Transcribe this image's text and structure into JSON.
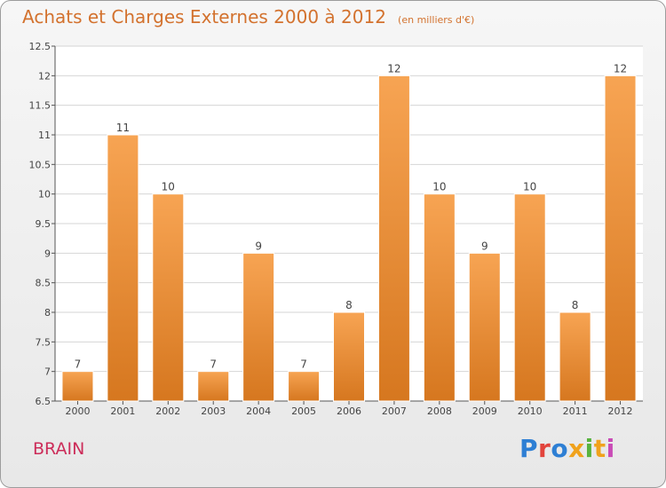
{
  "title": "Achats et Charges Externes 2000 à 2012",
  "unit_note": "(en milliers d'€)",
  "city_label": "BRAIN",
  "logo": {
    "letters": [
      "P",
      "r",
      "o",
      "x",
      "i",
      "t",
      "i"
    ],
    "colors": [
      "#2e7fd4",
      "#e2443c",
      "#2e7fd4",
      "#f0a21c",
      "#58b33e",
      "#f0a21c",
      "#c94bb6"
    ]
  },
  "colors": {
    "bar_light": "#f7a453",
    "bar_dark": "#d6771f",
    "title": "#d3722e",
    "city": "#cc2c59",
    "grid": "#d6d6d6",
    "axis": "#555555",
    "plot_bg": "#ffffff"
  },
  "chart_data": {
    "type": "bar",
    "title": "Achats et Charges Externes 2000 à 2012",
    "categories": [
      "2000",
      "2001",
      "2002",
      "2003",
      "2004",
      "2005",
      "2006",
      "2007",
      "2008",
      "2009",
      "2010",
      "2011",
      "2012"
    ],
    "values": [
      7,
      11,
      10,
      7,
      9,
      7,
      8,
      12,
      10,
      9,
      10,
      8,
      12
    ],
    "value_labels": [
      "7",
      "11",
      "10",
      "7",
      "9",
      "7",
      "8",
      "12",
      "10",
      "9",
      "10",
      "8",
      "12"
    ],
    "xlabel": "",
    "ylabel": "",
    "ylim": [
      6.5,
      12.5
    ],
    "yticks": [
      6.5,
      7,
      7.5,
      8,
      8.5,
      9,
      9.5,
      10,
      10.5,
      11,
      11.5,
      12,
      12.5
    ],
    "ytick_labels": [
      "6.5",
      "7",
      "7.5",
      "8",
      "8.5",
      "9",
      "9.5",
      "10",
      "10.5",
      "11",
      "11.5",
      "12",
      "12.5"
    ],
    "grid": true,
    "legend": "none"
  }
}
